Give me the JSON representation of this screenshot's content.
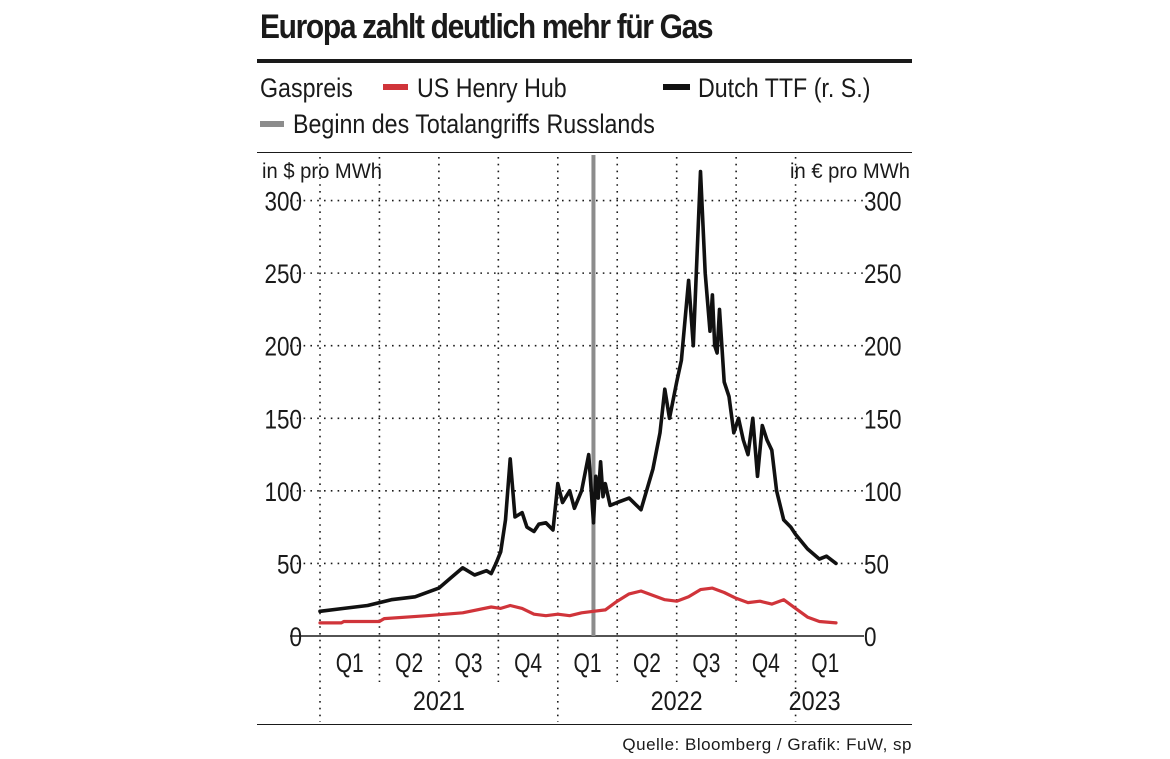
{
  "title": "Europa zahlt deutlich mehr für Gas",
  "legend": {
    "heading": "Gaspreis",
    "henry_hub": "US Henry Hub",
    "ttf": "Dutch TTF (r. S.)",
    "invasion": "Beginn des Totalangriffs Russlands"
  },
  "source": "Quelle: Bloomberg / Grafik: FuW, sp",
  "colors": {
    "henry_hub": "#d0343a",
    "ttf": "#111111",
    "invasion": "#8c8c8c",
    "grid": "#1a1a1a"
  },
  "chart_data": {
    "type": "line",
    "title": "Europa zahlt deutlich mehr für Gas",
    "ylabel_left": "in $ pro MWh",
    "ylabel_right": "in € pro MWh",
    "ylim": [
      0,
      330
    ],
    "yticks": [
      0,
      50,
      100,
      150,
      200,
      250,
      300
    ],
    "xlim": [
      2021.0,
      2023.17
    ],
    "quarter_ticks": [
      "Q1",
      "Q2",
      "Q3",
      "Q4",
      "Q1",
      "Q2",
      "Q3",
      "Q4",
      "Q1"
    ],
    "year_labels": [
      {
        "label": "2021",
        "x": 2021.5
      },
      {
        "label": "2022",
        "x": 2022.5
      },
      {
        "label": "2023",
        "x": 2023.08
      }
    ],
    "event": {
      "name": "Beginn des Totalangriffs Russlands",
      "x": 2022.15
    },
    "grid": true,
    "legend": "top",
    "series": [
      {
        "name": "US Henry Hub",
        "axis": "left",
        "x": [
          2021.0,
          2021.09,
          2021.1,
          2021.25,
          2021.27,
          2021.45,
          2021.6,
          2021.72,
          2021.76,
          2021.8,
          2021.85,
          2021.9,
          2021.95,
          2022.0,
          2022.05,
          2022.1,
          2022.15,
          2022.2,
          2022.25,
          2022.3,
          2022.35,
          2022.4,
          2022.45,
          2022.5,
          2022.55,
          2022.6,
          2022.65,
          2022.7,
          2022.75,
          2022.8,
          2022.85,
          2022.9,
          2022.95,
          2023.0,
          2023.05,
          2023.1,
          2023.17
        ],
        "values": [
          9,
          9,
          10,
          10,
          12,
          14,
          16,
          20,
          19,
          21,
          19,
          15,
          14,
          15,
          14,
          16,
          17,
          18,
          24,
          29,
          31,
          28,
          25,
          24,
          27,
          32,
          33,
          30,
          26,
          23,
          24,
          22,
          25,
          19,
          13,
          10,
          9
        ]
      },
      {
        "name": "Dutch TTF (r. S.)",
        "axis": "right",
        "x": [
          2021.0,
          2021.1,
          2021.2,
          2021.3,
          2021.4,
          2021.5,
          2021.55,
          2021.6,
          2021.65,
          2021.7,
          2021.72,
          2021.74,
          2021.76,
          2021.78,
          2021.8,
          2021.82,
          2021.85,
          2021.87,
          2021.9,
          2021.92,
          2021.95,
          2021.98,
          2022.0,
          2022.02,
          2022.05,
          2022.07,
          2022.1,
          2022.13,
          2022.15,
          2022.16,
          2022.17,
          2022.18,
          2022.19,
          2022.2,
          2022.22,
          2022.25,
          2022.3,
          2022.35,
          2022.4,
          2022.43,
          2022.45,
          2022.47,
          2022.5,
          2022.52,
          2022.55,
          2022.57,
          2022.6,
          2022.62,
          2022.63,
          2022.64,
          2022.65,
          2022.66,
          2022.67,
          2022.68,
          2022.7,
          2022.72,
          2022.74,
          2022.76,
          2022.78,
          2022.8,
          2022.82,
          2022.84,
          2022.86,
          2022.88,
          2022.9,
          2022.92,
          2022.95,
          2022.98,
          2023.0,
          2023.05,
          2023.1,
          2023.13,
          2023.17
        ],
        "values": [
          17,
          19,
          21,
          25,
          27,
          33,
          40,
          47,
          42,
          45,
          43,
          50,
          58,
          80,
          122,
          82,
          85,
          75,
          72,
          77,
          78,
          73,
          105,
          92,
          100,
          88,
          100,
          125,
          78,
          110,
          95,
          120,
          96,
          105,
          90,
          92,
          95,
          87,
          115,
          140,
          170,
          150,
          175,
          190,
          245,
          200,
          320,
          250,
          230,
          210,
          235,
          200,
          195,
          225,
          175,
          165,
          140,
          150,
          135,
          125,
          150,
          110,
          145,
          135,
          128,
          100,
          80,
          75,
          70,
          60,
          53,
          55,
          50
        ]
      }
    ]
  }
}
